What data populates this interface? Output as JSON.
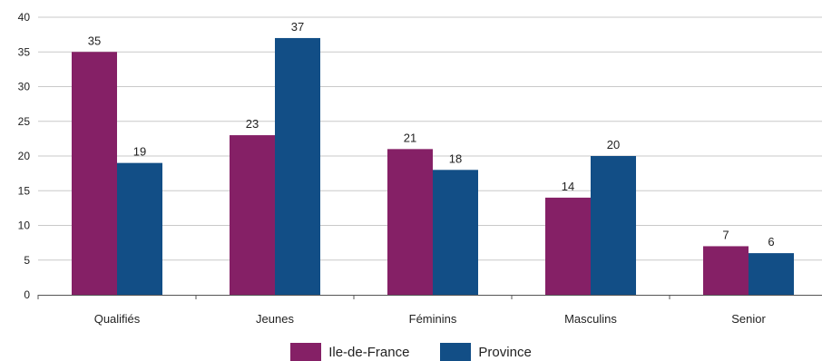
{
  "chart_data": {
    "type": "bar",
    "categories": [
      "Qualifiés",
      "Jeunes",
      "Féminins",
      "Masculins",
      "Senior"
    ],
    "series": [
      {
        "name": "Ile-de-France",
        "color": "#852066",
        "values": [
          35,
          23,
          21,
          14,
          7
        ]
      },
      {
        "name": "Province",
        "color": "#124e86",
        "values": [
          19,
          37,
          18,
          20,
          6
        ]
      }
    ],
    "data_labels": [
      [
        "35",
        "23",
        "21",
        "14",
        "7"
      ],
      [
        "19",
        "37",
        "18",
        "20",
        "6"
      ]
    ],
    "ylim": [
      0,
      40
    ],
    "yticks": [
      "0",
      "5",
      "10",
      "15",
      "20",
      "25",
      "30",
      "35",
      "40"
    ],
    "grid": true,
    "gridline_color": "#c9c9c9",
    "legend_position": "bottom",
    "title": "",
    "xlabel": "",
    "ylabel": ""
  }
}
